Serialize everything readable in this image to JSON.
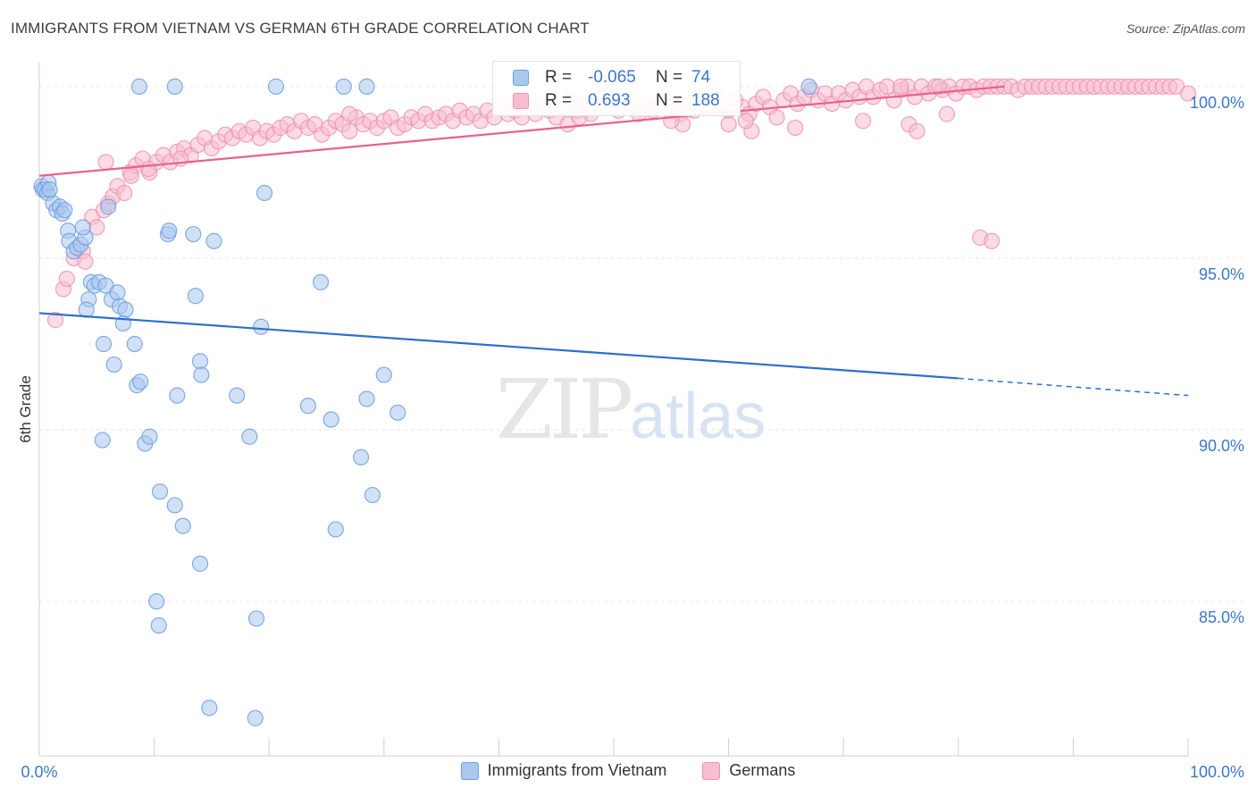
{
  "header": {
    "title": "IMMIGRANTS FROM VIETNAM VS GERMAN 6TH GRADE CORRELATION CHART",
    "source": "Source: ZipAtlas.com"
  },
  "stats": {
    "rows": [
      {
        "r_label": "R =",
        "r_value": "-0.065",
        "n_label": "N =",
        "n_value": "74"
      },
      {
        "r_label": "R =",
        "r_value": "0.693",
        "n_label": "N =",
        "n_value": "188"
      }
    ]
  },
  "watermark": {
    "part1": "ZIP",
    "part2": "atlas"
  },
  "colors": {
    "blue_fill": "#a9c8ef",
    "blue_stroke": "#6e9fe0",
    "blue_line": "#2a6fcf",
    "pink_fill": "#f7bdd0",
    "pink_stroke": "#ef93b0",
    "pink_line": "#e8628c",
    "tick_text": "#3b78c9",
    "grid": "#e6e6e6"
  },
  "legend": {
    "items": [
      {
        "label": "Immigrants from Vietnam",
        "color": "blue"
      },
      {
        "label": "Germans",
        "color": "pink"
      }
    ]
  },
  "chart_data": {
    "type": "scatter",
    "title": "IMMIGRANTS FROM VIETNAM VS GERMAN 6TH GRADE CORRELATION CHART",
    "xlabel": "",
    "ylabel": "6th Grade",
    "xlim": [
      0,
      100
    ],
    "ylim": [
      80.5,
      100.7
    ],
    "x_tick_labels": [
      "0.0%",
      "100.0%"
    ],
    "y_ticks": [
      85,
      90,
      95,
      100
    ],
    "y_tick_labels": [
      "85.0%",
      "90.0%",
      "95.0%",
      "100.0%"
    ],
    "grid": "horizontal dashed",
    "legend_position": "bottom",
    "series": [
      {
        "name": "Immigrants from Vietnam",
        "color": "blue",
        "r": -0.065,
        "n": 74,
        "trend": {
          "x": [
            0,
            80
          ],
          "y": [
            93.4,
            91.5
          ],
          "dashed_to": {
            "x": 100,
            "y": 91.0
          }
        },
        "points": [
          [
            0.2,
            97.1
          ],
          [
            0.3,
            97.0
          ],
          [
            0.5,
            97.0
          ],
          [
            0.7,
            96.9
          ],
          [
            0.8,
            97.2
          ],
          [
            1.2,
            96.6
          ],
          [
            1.5,
            96.4
          ],
          [
            1.8,
            96.5
          ],
          [
            2.0,
            96.3
          ],
          [
            2.5,
            95.8
          ],
          [
            2.6,
            95.5
          ],
          [
            3.0,
            95.2
          ],
          [
            3.3,
            95.3
          ],
          [
            3.6,
            95.4
          ],
          [
            4.0,
            95.6
          ],
          [
            4.5,
            94.3
          ],
          [
            4.8,
            94.2
          ],
          [
            5.2,
            94.3
          ],
          [
            4.3,
            93.8
          ],
          [
            4.1,
            93.5
          ],
          [
            5.8,
            94.2
          ],
          [
            6.3,
            93.8
          ],
          [
            6.8,
            94.0
          ],
          [
            7.0,
            93.6
          ],
          [
            7.5,
            93.5
          ],
          [
            7.3,
            93.1
          ],
          [
            5.6,
            92.5
          ],
          [
            6.5,
            91.9
          ],
          [
            8.3,
            92.5
          ],
          [
            8.5,
            91.3
          ],
          [
            8.8,
            91.4
          ],
          [
            9.2,
            89.6
          ],
          [
            9.6,
            89.8
          ],
          [
            5.5,
            89.7
          ],
          [
            10.5,
            88.2
          ],
          [
            11.8,
            87.8
          ],
          [
            12.5,
            87.2
          ],
          [
            14.0,
            86.1
          ],
          [
            10.2,
            85.0
          ],
          [
            10.4,
            84.3
          ],
          [
            18.9,
            84.5
          ],
          [
            14.8,
            81.9
          ],
          [
            18.8,
            81.6
          ],
          [
            11.2,
            95.7
          ],
          [
            11.3,
            95.8
          ],
          [
            13.4,
            95.7
          ],
          [
            15.2,
            95.5
          ],
          [
            13.6,
            93.9
          ],
          [
            14.0,
            92.0
          ],
          [
            14.1,
            91.6
          ],
          [
            12.0,
            91.0
          ],
          [
            17.2,
            91.0
          ],
          [
            18.3,
            89.8
          ],
          [
            19.3,
            93.0
          ],
          [
            19.6,
            96.9
          ],
          [
            23.4,
            90.7
          ],
          [
            25.4,
            90.3
          ],
          [
            24.5,
            94.3
          ],
          [
            25.8,
            87.1
          ],
          [
            28.5,
            90.9
          ],
          [
            28.0,
            89.2
          ],
          [
            29.0,
            88.1
          ],
          [
            30.0,
            91.6
          ],
          [
            31.2,
            90.5
          ],
          [
            8.7,
            100.0
          ],
          [
            11.8,
            100.0
          ],
          [
            20.6,
            100.0
          ],
          [
            26.5,
            100.0
          ],
          [
            28.5,
            100.0
          ],
          [
            67.0,
            100.0
          ],
          [
            2.2,
            96.4
          ],
          [
            3.8,
            95.9
          ],
          [
            6.0,
            96.5
          ],
          [
            0.9,
            97.0
          ]
        ]
      },
      {
        "name": "Germans",
        "color": "pink",
        "r": 0.693,
        "n": 188,
        "trend": {
          "x": [
            0,
            84
          ],
          "y": [
            97.4,
            100.0
          ]
        },
        "points": [
          [
            1.4,
            93.2
          ],
          [
            2.1,
            94.1
          ],
          [
            2.4,
            94.4
          ],
          [
            3.0,
            95.0
          ],
          [
            3.8,
            95.2
          ],
          [
            4.0,
            94.9
          ],
          [
            4.6,
            96.2
          ],
          [
            5.0,
            95.9
          ],
          [
            5.6,
            96.4
          ],
          [
            6.0,
            96.6
          ],
          [
            6.4,
            96.8
          ],
          [
            6.8,
            97.1
          ],
          [
            7.4,
            96.9
          ],
          [
            7.9,
            97.5
          ],
          [
            8.4,
            97.7
          ],
          [
            9.0,
            97.9
          ],
          [
            9.6,
            97.5
          ],
          [
            10.2,
            97.8
          ],
          [
            10.8,
            98.0
          ],
          [
            11.4,
            97.8
          ],
          [
            12.0,
            98.1
          ],
          [
            12.6,
            98.2
          ],
          [
            13.2,
            98.0
          ],
          [
            13.8,
            98.3
          ],
          [
            14.4,
            98.5
          ],
          [
            15.0,
            98.2
          ],
          [
            15.6,
            98.4
          ],
          [
            16.2,
            98.6
          ],
          [
            16.8,
            98.5
          ],
          [
            17.4,
            98.7
          ],
          [
            18.0,
            98.6
          ],
          [
            18.6,
            98.8
          ],
          [
            19.2,
            98.5
          ],
          [
            19.8,
            98.7
          ],
          [
            20.4,
            98.6
          ],
          [
            21.0,
            98.8
          ],
          [
            21.6,
            98.9
          ],
          [
            22.2,
            98.7
          ],
          [
            22.8,
            99.0
          ],
          [
            23.4,
            98.8
          ],
          [
            24.0,
            98.9
          ],
          [
            24.6,
            98.6
          ],
          [
            25.2,
            98.8
          ],
          [
            25.8,
            99.0
          ],
          [
            26.4,
            98.9
          ],
          [
            27.0,
            98.7
          ],
          [
            27.6,
            99.1
          ],
          [
            28.2,
            98.9
          ],
          [
            28.8,
            99.0
          ],
          [
            29.4,
            98.8
          ],
          [
            30.0,
            99.0
          ],
          [
            30.6,
            99.1
          ],
          [
            31.2,
            98.8
          ],
          [
            31.8,
            98.9
          ],
          [
            32.4,
            99.1
          ],
          [
            33.0,
            99.0
          ],
          [
            33.6,
            99.2
          ],
          [
            34.2,
            99.0
          ],
          [
            34.8,
            99.1
          ],
          [
            35.4,
            99.2
          ],
          [
            36.0,
            99.0
          ],
          [
            36.6,
            99.3
          ],
          [
            37.2,
            99.1
          ],
          [
            37.8,
            99.2
          ],
          [
            38.4,
            99.0
          ],
          [
            39.0,
            99.3
          ],
          [
            39.6,
            99.1
          ],
          [
            40.2,
            99.4
          ],
          [
            40.8,
            99.2
          ],
          [
            41.4,
            99.3
          ],
          [
            42.0,
            99.1
          ],
          [
            42.6,
            99.4
          ],
          [
            43.2,
            99.2
          ],
          [
            43.8,
            99.5
          ],
          [
            44.4,
            99.3
          ],
          [
            45.0,
            99.1
          ],
          [
            45.6,
            99.4
          ],
          [
            46.2,
            99.6
          ],
          [
            46.8,
            99.3
          ],
          [
            47.4,
            99.5
          ],
          [
            48.0,
            99.2
          ],
          [
            48.6,
            99.5
          ],
          [
            49.2,
            99.4
          ],
          [
            49.8,
            99.6
          ],
          [
            50.4,
            99.3
          ],
          [
            51.0,
            99.5
          ],
          [
            51.6,
            99.4
          ],
          [
            52.2,
            99.2
          ],
          [
            52.8,
            99.5
          ],
          [
            53.4,
            99.3
          ],
          [
            54.0,
            99.5
          ],
          [
            54.6,
            99.6
          ],
          [
            55.2,
            99.4
          ],
          [
            55.8,
            99.2
          ],
          [
            56.4,
            99.5
          ],
          [
            57.0,
            99.3
          ],
          [
            57.6,
            99.6
          ],
          [
            58.2,
            99.4
          ],
          [
            58.8,
            99.7
          ],
          [
            59.4,
            99.5
          ],
          [
            60.0,
            99.3
          ],
          [
            60.6,
            99.6
          ],
          [
            61.2,
            99.4
          ],
          [
            61.8,
            99.2
          ],
          [
            62.4,
            99.5
          ],
          [
            63.0,
            99.7
          ],
          [
            63.6,
            99.4
          ],
          [
            64.2,
            99.1
          ],
          [
            64.8,
            99.6
          ],
          [
            65.4,
            99.8
          ],
          [
            66.0,
            99.5
          ],
          [
            66.6,
            99.7
          ],
          [
            67.2,
            99.9
          ],
          [
            67.8,
            99.6
          ],
          [
            68.4,
            99.8
          ],
          [
            69.0,
            99.5
          ],
          [
            69.6,
            99.8
          ],
          [
            70.2,
            99.6
          ],
          [
            70.8,
            99.9
          ],
          [
            71.4,
            99.7
          ],
          [
            72.0,
            100.0
          ],
          [
            72.6,
            99.7
          ],
          [
            73.2,
            99.9
          ],
          [
            73.8,
            100.0
          ],
          [
            74.4,
            99.6
          ],
          [
            75.0,
            99.9
          ],
          [
            75.6,
            100.0
          ],
          [
            76.2,
            99.7
          ],
          [
            76.8,
            100.0
          ],
          [
            77.4,
            99.8
          ],
          [
            78.0,
            100.0
          ],
          [
            78.6,
            99.9
          ],
          [
            79.2,
            100.0
          ],
          [
            79.8,
            99.8
          ],
          [
            80.4,
            100.0
          ],
          [
            81.0,
            100.0
          ],
          [
            81.6,
            99.9
          ],
          [
            82.2,
            100.0
          ],
          [
            82.8,
            100.0
          ],
          [
            83.4,
            100.0
          ],
          [
            84.0,
            100.0
          ],
          [
            84.6,
            100.0
          ],
          [
            85.2,
            99.9
          ],
          [
            85.8,
            100.0
          ],
          [
            86.4,
            100.0
          ],
          [
            87.0,
            100.0
          ],
          [
            87.6,
            100.0
          ],
          [
            88.2,
            100.0
          ],
          [
            88.8,
            100.0
          ],
          [
            89.4,
            100.0
          ],
          [
            90.0,
            100.0
          ],
          [
            90.6,
            100.0
          ],
          [
            91.2,
            100.0
          ],
          [
            91.8,
            100.0
          ],
          [
            92.4,
            100.0
          ],
          [
            93.0,
            100.0
          ],
          [
            93.6,
            100.0
          ],
          [
            94.2,
            100.0
          ],
          [
            94.8,
            100.0
          ],
          [
            95.4,
            100.0
          ],
          [
            96.0,
            100.0
          ],
          [
            96.6,
            100.0
          ],
          [
            97.2,
            100.0
          ],
          [
            97.8,
            100.0
          ],
          [
            98.4,
            100.0
          ],
          [
            99.0,
            100.0
          ],
          [
            100.0,
            99.8
          ],
          [
            62.0,
            98.7
          ],
          [
            65.8,
            98.8
          ],
          [
            71.7,
            99.0
          ],
          [
            75.7,
            98.9
          ],
          [
            76.4,
            98.7
          ],
          [
            79.0,
            99.2
          ],
          [
            81.9,
            95.6
          ],
          [
            82.9,
            95.5
          ],
          [
            75.0,
            100.0
          ],
          [
            78.3,
            100.0
          ],
          [
            46.0,
            98.9
          ],
          [
            56.0,
            98.9
          ],
          [
            61.5,
            99.0
          ],
          [
            5.8,
            97.8
          ],
          [
            8.0,
            97.4
          ],
          [
            12.3,
            97.9
          ],
          [
            60.0,
            98.9
          ],
          [
            55.0,
            99.0
          ],
          [
            47.0,
            99.1
          ],
          [
            27.0,
            99.2
          ],
          [
            9.5,
            97.6
          ]
        ]
      }
    ]
  }
}
